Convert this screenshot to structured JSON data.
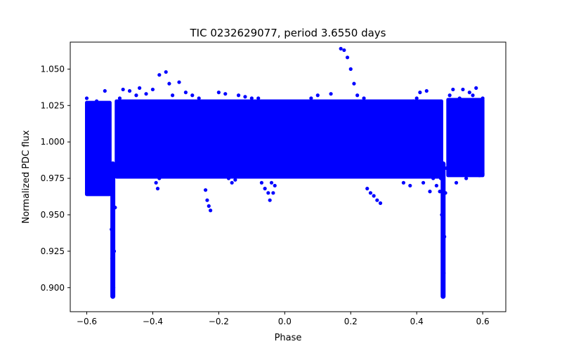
{
  "chart_data": {
    "type": "scatter",
    "title": "TIC 0232629077, period 3.6550 days",
    "xlabel": "Phase",
    "ylabel": "Normalized PDC flux",
    "xlim": [
      -0.65,
      0.67
    ],
    "ylim": [
      0.8835,
      1.0685
    ],
    "xticks": [
      -0.6,
      -0.4,
      -0.2,
      0.0,
      0.2,
      0.4,
      0.6
    ],
    "xtick_labels": [
      "−0.6",
      "−0.4",
      "−0.2",
      "0.0",
      "0.2",
      "0.4",
      "0.6"
    ],
    "yticks": [
      0.9,
      0.925,
      0.95,
      0.975,
      1.0,
      1.025,
      1.05
    ],
    "ytick_labels": [
      "0.900",
      "0.925",
      "0.950",
      "0.975",
      "1.000",
      "1.025",
      "1.050"
    ],
    "marker_color": "#0000ff",
    "series": [
      {
        "name": "PDC flux",
        "points": [
          [
            -0.6,
            0.965
          ],
          [
            -0.6,
            1.03
          ],
          [
            -0.59,
            1.02
          ],
          [
            -0.58,
            0.975
          ],
          [
            -0.57,
            1.028
          ],
          [
            -0.56,
            1.02
          ],
          [
            -0.55,
            0.968
          ],
          [
            -0.545,
            1.035
          ],
          [
            -0.54,
            0.975
          ],
          [
            -0.535,
            1.0
          ],
          [
            -0.53,
            0.985
          ],
          [
            -0.528,
            0.965
          ],
          [
            -0.525,
            0.94
          ],
          [
            -0.523,
            0.92
          ],
          [
            -0.522,
            0.905
          ],
          [
            -0.521,
            0.894
          ],
          [
            -0.519,
            0.9
          ],
          [
            -0.517,
            0.925
          ],
          [
            -0.514,
            0.955
          ],
          [
            -0.51,
            0.98
          ],
          [
            -0.5,
            1.03
          ],
          [
            -0.49,
            1.036
          ],
          [
            -0.48,
            0.978
          ],
          [
            -0.47,
            1.035
          ],
          [
            -0.46,
            0.982
          ],
          [
            -0.45,
            1.032
          ],
          [
            -0.44,
            1.037
          ],
          [
            -0.43,
            0.978
          ],
          [
            -0.42,
            1.033
          ],
          [
            -0.4,
            1.036
          ],
          [
            -0.39,
            0.972
          ],
          [
            -0.385,
            0.968
          ],
          [
            -0.38,
            0.975
          ],
          [
            -0.38,
            1.046
          ],
          [
            -0.36,
            1.048
          ],
          [
            -0.35,
            1.04
          ],
          [
            -0.34,
            1.032
          ],
          [
            -0.32,
            1.041
          ],
          [
            -0.3,
            1.034
          ],
          [
            -0.28,
            1.032
          ],
          [
            -0.26,
            1.03
          ],
          [
            -0.24,
            0.967
          ],
          [
            -0.235,
            0.96
          ],
          [
            -0.23,
            0.956
          ],
          [
            -0.225,
            0.953
          ],
          [
            -0.21,
            0.982
          ],
          [
            -0.2,
            1.034
          ],
          [
            -0.18,
            1.033
          ],
          [
            -0.17,
            0.975
          ],
          [
            -0.16,
            0.972
          ],
          [
            -0.15,
            0.974
          ],
          [
            -0.14,
            1.032
          ],
          [
            -0.12,
            1.031
          ],
          [
            -0.1,
            1.03
          ],
          [
            -0.08,
            1.03
          ],
          [
            -0.07,
            0.972
          ],
          [
            -0.06,
            0.968
          ],
          [
            -0.05,
            0.965
          ],
          [
            -0.045,
            0.96
          ],
          [
            -0.04,
            0.972
          ],
          [
            -0.035,
            0.965
          ],
          [
            -0.03,
            0.97
          ],
          [
            -0.02,
            1.026
          ],
          [
            -0.01,
            1.022
          ],
          [
            0.0,
            0.978
          ],
          [
            0.02,
            1.02
          ],
          [
            0.05,
            1.026
          ],
          [
            0.08,
            1.03
          ],
          [
            0.1,
            1.032
          ],
          [
            0.14,
            1.033
          ],
          [
            0.17,
            1.064
          ],
          [
            0.18,
            1.063
          ],
          [
            0.19,
            1.058
          ],
          [
            0.2,
            1.05
          ],
          [
            0.21,
            1.04
          ],
          [
            0.22,
            1.032
          ],
          [
            0.23,
            1.018
          ],
          [
            0.24,
            1.03
          ],
          [
            0.25,
            0.968
          ],
          [
            0.26,
            0.965
          ],
          [
            0.27,
            0.963
          ],
          [
            0.28,
            0.96
          ],
          [
            0.29,
            0.958
          ],
          [
            0.3,
            1.027
          ],
          [
            0.33,
            1.025
          ],
          [
            0.36,
            0.972
          ],
          [
            0.38,
            0.97
          ],
          [
            0.39,
            1.028
          ],
          [
            0.4,
            1.03
          ],
          [
            0.41,
            1.034
          ],
          [
            0.42,
            0.972
          ],
          [
            0.43,
            1.035
          ],
          [
            0.44,
            0.966
          ],
          [
            0.45,
            0.975
          ],
          [
            0.46,
            0.97
          ],
          [
            0.47,
            0.966
          ],
          [
            0.473,
            0.975
          ],
          [
            0.476,
            0.95
          ],
          [
            0.478,
            0.925
          ],
          [
            0.479,
            0.905
          ],
          [
            0.48,
            0.895
          ],
          [
            0.482,
            0.91
          ],
          [
            0.484,
            0.935
          ],
          [
            0.487,
            0.965
          ],
          [
            0.49,
            0.982
          ],
          [
            0.5,
            1.032
          ],
          [
            0.51,
            1.036
          ],
          [
            0.52,
            0.972
          ],
          [
            0.53,
            1.03
          ],
          [
            0.54,
            1.036
          ],
          [
            0.55,
            0.975
          ],
          [
            0.56,
            1.034
          ],
          [
            0.57,
            1.032
          ],
          [
            0.58,
            1.037
          ],
          [
            0.59,
            0.977
          ],
          [
            0.6,
            1.03
          ],
          [
            0.6,
            0.978
          ]
        ]
      }
    ]
  }
}
